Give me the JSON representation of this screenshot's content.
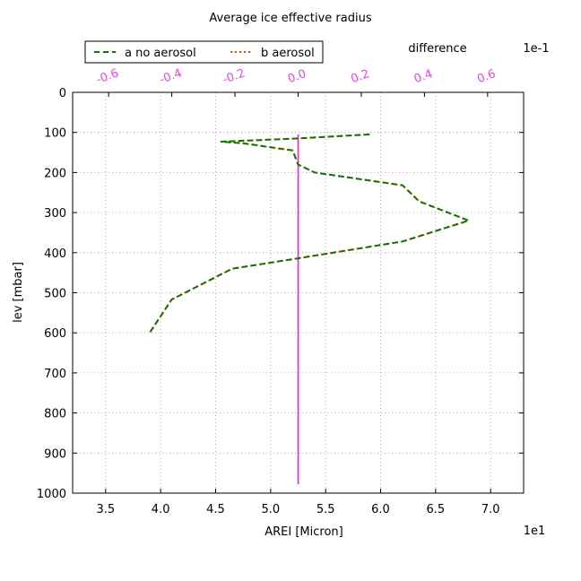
{
  "chart_data": {
    "type": "line",
    "title": "Average ice effective radius",
    "xlabel": "AREI [Micron]",
    "ylabel": "lev [mbar]",
    "x_multiplier": "1e1",
    "xlim": [
      3.2,
      7.3
    ],
    "x_ticks": [
      "3.5",
      "4.0",
      "4.5",
      "5.0",
      "5.5",
      "6.0",
      "6.5",
      "7.0"
    ],
    "ylim": [
      0,
      1000
    ],
    "y_inverted": true,
    "y_ticks": [
      "0",
      "100",
      "200",
      "300",
      "400",
      "500",
      "600",
      "700",
      "800",
      "900",
      "1000"
    ],
    "grid": true,
    "legend_location": "top-left, above axes",
    "top_axis": {
      "label": "difference",
      "multiplier": "1e-1",
      "xlim": [
        -0.714,
        0.714
      ],
      "ticks": [
        "-0.6",
        "-0.4",
        "-0.2",
        "0.0",
        "0.2",
        "0.4",
        "0.6"
      ],
      "color": "#ee44ee"
    },
    "series": [
      {
        "name": "a no aerosol",
        "style": "dashed",
        "color": "#007700",
        "x": [
          5.9,
          5.25,
          4.55,
          4.75,
          5.2,
          5.25,
          5.4,
          6.2,
          6.35,
          6.8,
          6.2,
          5.25,
          4.65,
          4.1,
          3.9
        ],
        "y": [
          105,
          115,
          123,
          127,
          145,
          180,
          200,
          232,
          272,
          320,
          372,
          414,
          440,
          517,
          600
        ]
      },
      {
        "name": "b aerosol",
        "style": "dotted",
        "color": "#ff4400",
        "x": [
          5.9,
          5.25,
          4.55,
          4.75,
          5.2,
          5.25,
          5.4,
          6.2,
          6.35,
          6.8,
          6.2,
          5.25,
          4.65,
          4.1,
          3.9
        ],
        "y": [
          105,
          115,
          123,
          127,
          145,
          180,
          200,
          232,
          272,
          320,
          372,
          414,
          440,
          517,
          600
        ]
      }
    ],
    "difference_series": {
      "color": "#dd33cc",
      "x": [
        0.0,
        0.0
      ],
      "y": [
        105,
        978
      ]
    }
  }
}
